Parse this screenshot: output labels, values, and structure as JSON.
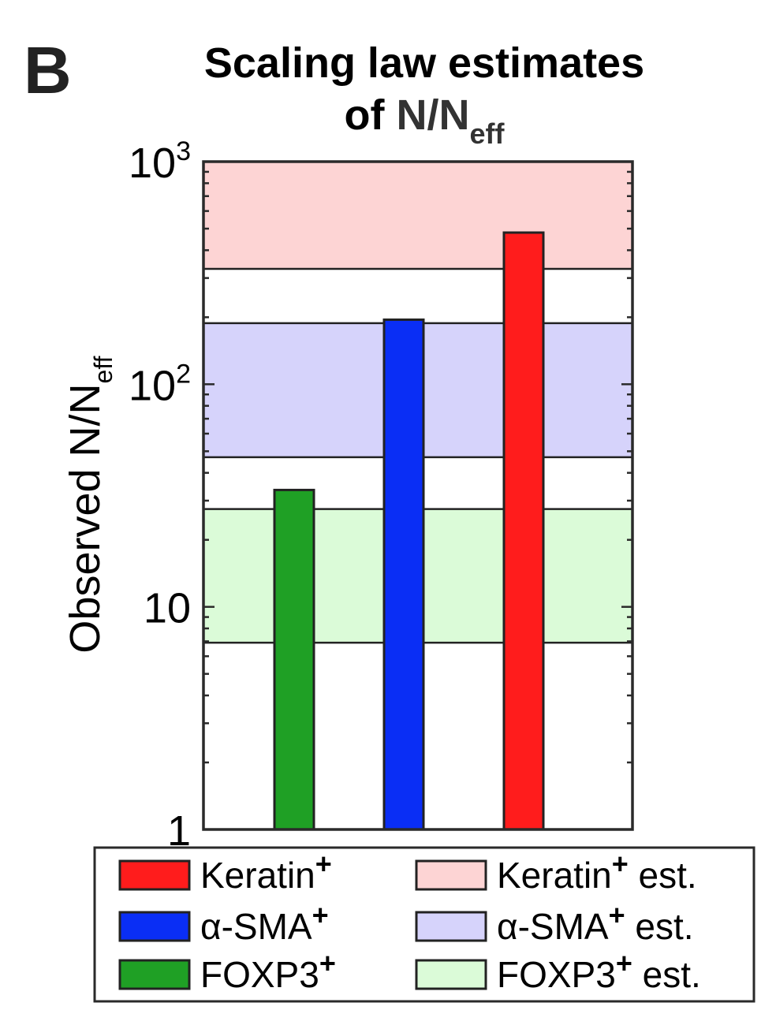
{
  "panel_label": "B",
  "title_line1": "Scaling law estimates",
  "title_line2_prefix": "of ",
  "title_symbol": "N/N",
  "title_symbol_sub": "eff",
  "ylabel_main": "Observed N/N",
  "ylabel_sub": "eff",
  "colors": {
    "keratin": "#ff1c1c",
    "sma": "#0a2ef5",
    "foxp3": "#1fa025",
    "keratin_band": "#fdd4d4",
    "sma_band": "#d6d3fb",
    "foxp3_band": "#dbfbd8",
    "axis": "#2a2a2a"
  },
  "chart_data": {
    "type": "bar",
    "yscale": "log",
    "ylim": [
      1,
      1000
    ],
    "ytick_labels": [
      {
        "value": 1,
        "base": "1",
        "exp": ""
      },
      {
        "value": 10,
        "base": "10",
        "exp": ""
      },
      {
        "value": 100,
        "base": "10",
        "exp": "2"
      },
      {
        "value": 1000,
        "base": "10",
        "exp": "3"
      }
    ],
    "bars": [
      {
        "key": "foxp3",
        "value": 33.5
      },
      {
        "key": "sma",
        "value": 195
      },
      {
        "key": "keratin",
        "value": 480
      }
    ],
    "bands": [
      {
        "key": "keratin_band",
        "low": 330,
        "high": 1000
      },
      {
        "key": "sma_band",
        "low": 47,
        "high": 188
      },
      {
        "key": "foxp3_band",
        "low": 6.9,
        "high": 27.5
      }
    ],
    "legend": {
      "position": "bottom",
      "entries": [
        {
          "key": "keratin",
          "label": "Keratin",
          "sup": "+",
          "suffix": ""
        },
        {
          "key": "keratin_band",
          "label": "Keratin",
          "sup": "+",
          "suffix": " est."
        },
        {
          "key": "sma",
          "label": "α-SMA",
          "sup": "+",
          "suffix": ""
        },
        {
          "key": "sma_band",
          "label": "α-SMA",
          "sup": "+",
          "suffix": " est."
        },
        {
          "key": "foxp3",
          "label": "FOXP3",
          "sup": "+",
          "suffix": ""
        },
        {
          "key": "foxp3_band",
          "label": "FOXP3",
          "sup": "+",
          "suffix": " est."
        }
      ]
    }
  }
}
